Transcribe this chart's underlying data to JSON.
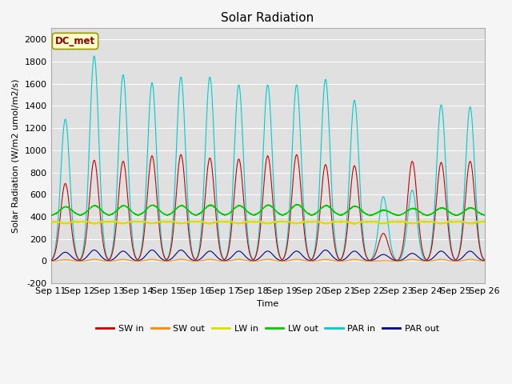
{
  "title": "Solar Radiation",
  "ylabel": "Solar Radiation (W/m2 umol/m2/s)",
  "xlabel": "Time",
  "ylim": [
    -200,
    2100
  ],
  "yticks": [
    -200,
    0,
    200,
    400,
    600,
    800,
    1000,
    1200,
    1400,
    1600,
    1800,
    2000
  ],
  "n_days": 15,
  "start_day": 11,
  "annotation": "DC_met",
  "plot_bg_color": "#e0e0e0",
  "fig_bg_color": "#f5f5f5",
  "series_colors": {
    "SW_in": "#cc0000",
    "SW_out": "#ff8800",
    "LW_in": "#dddd00",
    "LW_out": "#00cc00",
    "PAR_in": "#00cccc",
    "PAR_out": "#00008b"
  },
  "legend_labels": [
    "SW in",
    "SW out",
    "LW in",
    "LW out",
    "PAR in",
    "PAR out"
  ],
  "points_per_day": 288,
  "linewidth": 0.8,
  "title_fontsize": 11,
  "label_fontsize": 8,
  "tick_fontsize": 8,
  "legend_fontsize": 8
}
